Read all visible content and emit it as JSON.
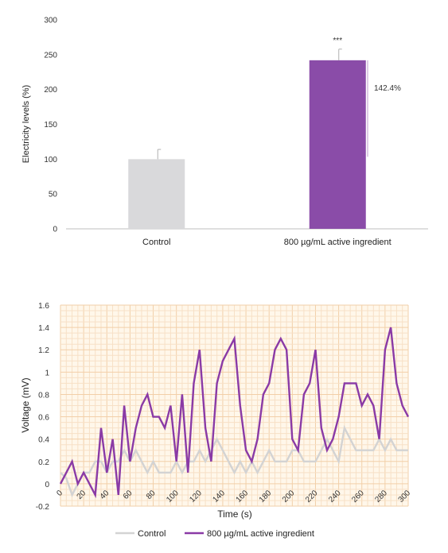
{
  "chart_data": [
    {
      "type": "bar",
      "categories": [
        "Control",
        "800 µg/mL active ingredient"
      ],
      "values": [
        100,
        242
      ],
      "errors": [
        14,
        16
      ],
      "colors": [
        "#d9d9db",
        "#8a4ca8"
      ],
      "ylabel": "Electricity levels (%)",
      "ylim": [
        0,
        300
      ],
      "yticks": [
        "0",
        "50",
        "100",
        "150",
        "200",
        "250",
        "300"
      ],
      "significance": "***",
      "bracket_label": "142.4%",
      "bracket_range": [
        100,
        242
      ],
      "grid": false
    },
    {
      "type": "line",
      "xlabel": "Time (s)",
      "ylabel": "Voltage (mV)",
      "xlim": [
        0,
        300
      ],
      "ylim": [
        -0.2,
        1.6
      ],
      "xticks": [
        "0",
        "20",
        "40",
        "60",
        "80",
        "100",
        "120",
        "140",
        "160",
        "180",
        "200",
        "220",
        "240",
        "260",
        "280",
        "300"
      ],
      "yticks": [
        "-0.2",
        "0",
        "0.2",
        "0.4",
        "0.6",
        "0.8",
        "1",
        "1.2",
        "1.4",
        "1.6"
      ],
      "grid": true,
      "legend_position": "bottom",
      "series": [
        {
          "name": "Control",
          "color": "#d3d3d3",
          "points": [
            [
              0,
              0.1
            ],
            [
              5,
              0.05
            ],
            [
              10,
              -0.1
            ],
            [
              15,
              0
            ],
            [
              20,
              0.1
            ],
            [
              25,
              0.1
            ],
            [
              30,
              0.2
            ],
            [
              35,
              0.2
            ],
            [
              40,
              0.1
            ],
            [
              45,
              0.2
            ],
            [
              50,
              0.2
            ],
            [
              55,
              0.3
            ],
            [
              60,
              0.2
            ],
            [
              65,
              0.3
            ],
            [
              70,
              0.2
            ],
            [
              75,
              0.1
            ],
            [
              80,
              0.2
            ],
            [
              85,
              0.1
            ],
            [
              90,
              0.1
            ],
            [
              95,
              0.1
            ],
            [
              100,
              0.2
            ],
            [
              105,
              0.1
            ],
            [
              110,
              0.2
            ],
            [
              115,
              0.2
            ],
            [
              120,
              0.3
            ],
            [
              125,
              0.2
            ],
            [
              130,
              0.3
            ],
            [
              135,
              0.4
            ],
            [
              140,
              0.3
            ],
            [
              145,
              0.2
            ],
            [
              150,
              0.1
            ],
            [
              155,
              0.2
            ],
            [
              160,
              0.1
            ],
            [
              165,
              0.2
            ],
            [
              170,
              0.1
            ],
            [
              175,
              0.2
            ],
            [
              180,
              0.3
            ],
            [
              185,
              0.2
            ],
            [
              190,
              0.2
            ],
            [
              195,
              0.2
            ],
            [
              200,
              0.3
            ],
            [
              205,
              0.3
            ],
            [
              210,
              0.2
            ],
            [
              215,
              0.2
            ],
            [
              220,
              0.2
            ],
            [
              225,
              0.3
            ],
            [
              230,
              0.4
            ],
            [
              235,
              0.3
            ],
            [
              240,
              0.2
            ],
            [
              245,
              0.5
            ],
            [
              250,
              0.4
            ],
            [
              255,
              0.3
            ],
            [
              260,
              0.3
            ],
            [
              265,
              0.3
            ],
            [
              270,
              0.3
            ],
            [
              275,
              0.4
            ],
            [
              280,
              0.3
            ],
            [
              285,
              0.4
            ],
            [
              290,
              0.3
            ],
            [
              295,
              0.3
            ],
            [
              300,
              0.3
            ]
          ]
        },
        {
          "name": "800 µg/mL active ingredient",
          "color": "#8a3aa6",
          "points": [
            [
              0,
              0
            ],
            [
              10,
              0.2
            ],
            [
              15,
              0
            ],
            [
              20,
              0.1
            ],
            [
              30,
              -0.1
            ],
            [
              35,
              0.5
            ],
            [
              40,
              0.1
            ],
            [
              45,
              0.4
            ],
            [
              50,
              -0.1
            ],
            [
              55,
              0.7
            ],
            [
              60,
              0.2
            ],
            [
              65,
              0.5
            ],
            [
              70,
              0.7
            ],
            [
              75,
              0.8
            ],
            [
              80,
              0.6
            ],
            [
              85,
              0.6
            ],
            [
              90,
              0.5
            ],
            [
              95,
              0.7
            ],
            [
              100,
              0.2
            ],
            [
              105,
              0.8
            ],
            [
              110,
              0.1
            ],
            [
              115,
              0.9
            ],
            [
              120,
              1.2
            ],
            [
              125,
              0.5
            ],
            [
              130,
              0.2
            ],
            [
              135,
              0.9
            ],
            [
              140,
              1.1
            ],
            [
              145,
              1.2
            ],
            [
              150,
              1.3
            ],
            [
              155,
              0.7
            ],
            [
              160,
              0.3
            ],
            [
              165,
              0.2
            ],
            [
              170,
              0.4
            ],
            [
              175,
              0.8
            ],
            [
              180,
              0.9
            ],
            [
              185,
              1.2
            ],
            [
              190,
              1.3
            ],
            [
              195,
              1.2
            ],
            [
              200,
              0.4
            ],
            [
              205,
              0.3
            ],
            [
              210,
              0.8
            ],
            [
              215,
              0.9
            ],
            [
              220,
              1.2
            ],
            [
              225,
              0.5
            ],
            [
              230,
              0.3
            ],
            [
              235,
              0.4
            ],
            [
              240,
              0.6
            ],
            [
              245,
              0.9
            ],
            [
              250,
              0.9
            ],
            [
              255,
              0.9
            ],
            [
              260,
              0.7
            ],
            [
              265,
              0.8
            ],
            [
              270,
              0.7
            ],
            [
              275,
              0.4
            ],
            [
              280,
              1.2
            ],
            [
              285,
              1.4
            ],
            [
              290,
              0.9
            ],
            [
              295,
              0.7
            ],
            [
              300,
              0.6
            ]
          ]
        }
      ]
    }
  ]
}
